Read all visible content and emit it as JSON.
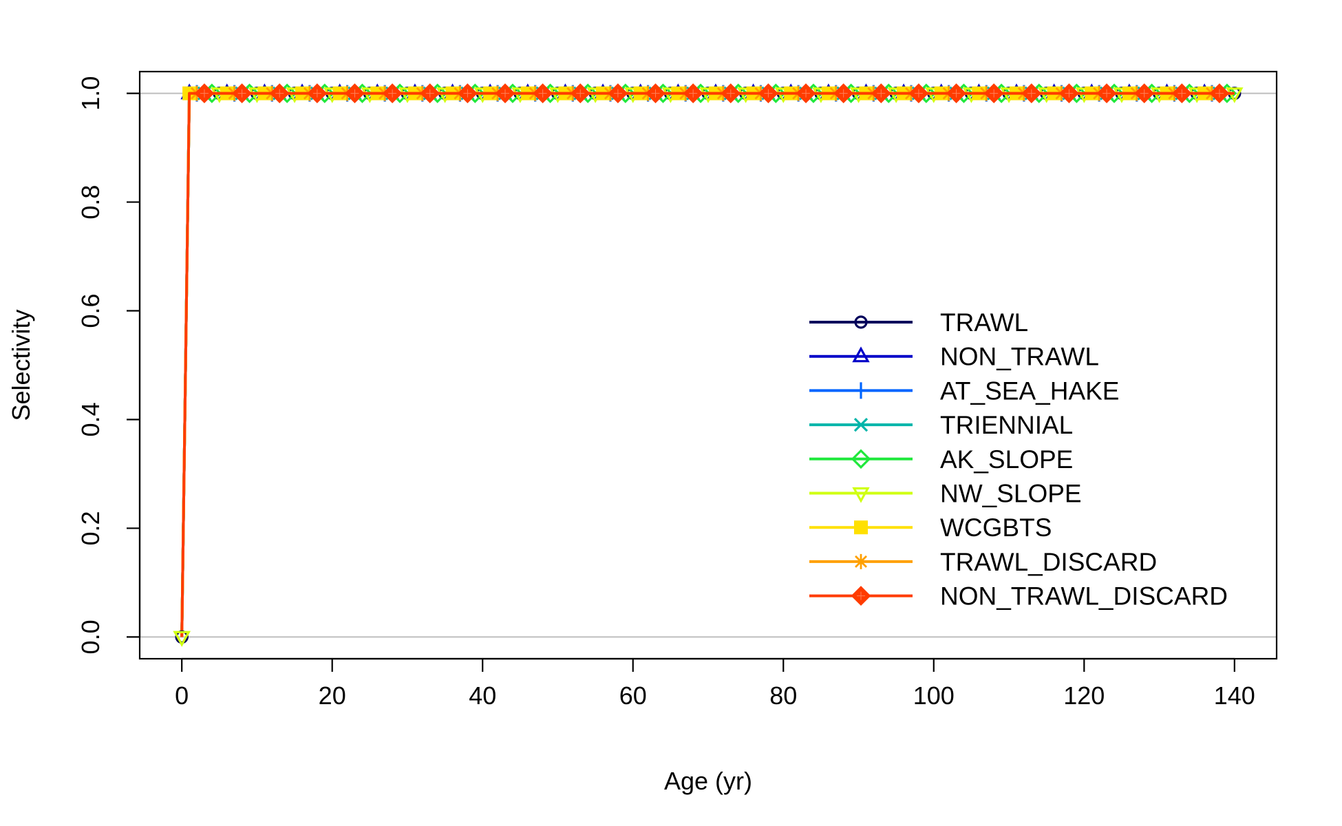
{
  "chart_data": {
    "type": "line",
    "title": "",
    "xlabel": "Age (yr)",
    "ylabel": "Selectivity",
    "xlim": [
      -5.6,
      145.6
    ],
    "ylim": [
      -0.04,
      1.04
    ],
    "xticks": [
      0,
      20,
      40,
      60,
      80,
      100,
      120,
      140
    ],
    "xtick_labels": [
      "0",
      "20",
      "40",
      "60",
      "80",
      "100",
      "120",
      "140"
    ],
    "yticks": [
      0,
      0.2,
      0.4,
      0.6,
      0.8,
      1
    ],
    "ytick_labels": [
      "0.0",
      "0.2",
      "0.4",
      "0.6",
      "0.8",
      "1.0"
    ],
    "reference_lines_y": [
      0,
      1
    ],
    "reference_line_color": "#BEBEBE",
    "legend_position": "right",
    "x": {
      "from": 0,
      "to": 140,
      "step": 1
    },
    "series": [
      {
        "name": "TRAWL",
        "color": "#00005B",
        "marker": "circle",
        "marker_ages_start": 0,
        "marker_every": 5,
        "values": {
          "age_0": 0,
          "age_1_to_140": 1
        }
      },
      {
        "name": "NON_TRAWL",
        "color": "#0000C8",
        "marker": "triangle-up",
        "marker_ages_start": 1,
        "marker_every": 5,
        "values": {
          "age_0": 0,
          "age_1_to_140": 1
        }
      },
      {
        "name": "AT_SEA_HAKE",
        "color": "#0065FF",
        "marker": "plus",
        "marker_ages_start": 2,
        "marker_every": 5,
        "values": {
          "age_0": 0,
          "age_1_to_140": 1
        }
      },
      {
        "name": "TRIENNIAL",
        "color": "#00B5AA",
        "marker": "cross",
        "marker_ages_start": 3,
        "marker_every": 5,
        "values": {
          "age_0": 0,
          "age_1_to_140": 1
        }
      },
      {
        "name": "AK_SLOPE",
        "color": "#20E83C",
        "marker": "diamond-open",
        "marker_ages_start": 4,
        "marker_every": 5,
        "values": {
          "age_0": 0,
          "age_1_to_140": 1
        }
      },
      {
        "name": "NW_SLOPE",
        "color": "#D0FF12",
        "marker": "triangle-down",
        "marker_ages_start": 0,
        "marker_every": 5,
        "values": {
          "age_0": 0,
          "age_1_to_140": 1
        }
      },
      {
        "name": "WCGBTS",
        "color": "#FFE000",
        "marker": "square",
        "marker_ages_start": 1,
        "marker_every": 5,
        "values": {
          "age_0": 0,
          "age_1_to_140": 1
        }
      },
      {
        "name": "TRAWL_DISCARD",
        "color": "#FFA000",
        "marker": "asterisk",
        "marker_ages_start": 2,
        "marker_every": 5,
        "values": {
          "age_0": 0,
          "age_1_to_140": 1
        }
      },
      {
        "name": "NON_TRAWL_DISCARD",
        "color": "#FF3C00",
        "marker": "diamond-filled",
        "marker_ages_start": 3,
        "marker_every": 5,
        "values": {
          "age_0": 0,
          "age_1_to_140": 1
        }
      }
    ]
  }
}
